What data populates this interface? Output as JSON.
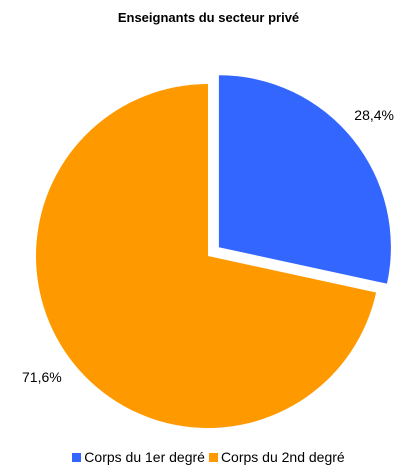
{
  "chart_data": {
    "type": "pie",
    "title": "Enseignants du secteur privé",
    "categories": [
      "Corps du 1er degré",
      "Corps du 2nd degré"
    ],
    "values": [
      28.4,
      71.6
    ],
    "labels": [
      "28,4%",
      "71,6%"
    ],
    "colors": [
      "#3366ff",
      "#ff9900"
    ],
    "exploded": [
      true,
      false
    ],
    "legend_position": "bottom"
  }
}
